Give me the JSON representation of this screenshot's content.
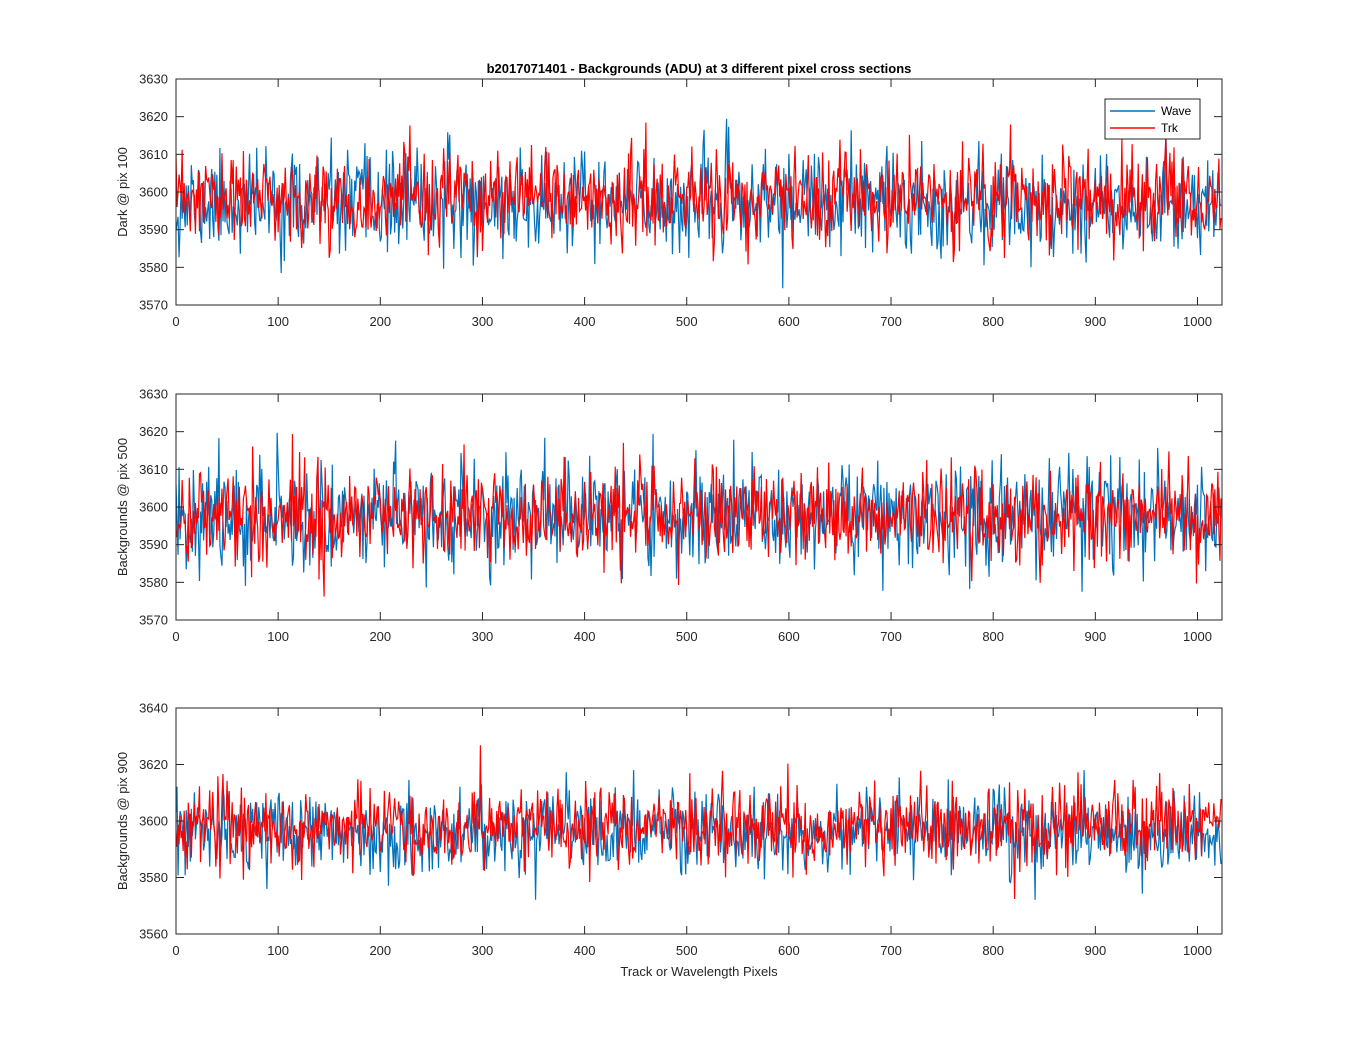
{
  "chart_data": [
    {
      "type": "line",
      "title": "b2017071401 - Backgrounds (ADU) at 3 different pixel cross sections",
      "xlabel": "",
      "ylabel": "Dark @ pix 100",
      "xlim": [
        0,
        1024
      ],
      "ylim": [
        3570,
        3630
      ],
      "x_ticks": [
        0,
        100,
        200,
        300,
        400,
        500,
        600,
        700,
        800,
        900,
        1000
      ],
      "y_ticks": [
        3570,
        3580,
        3590,
        3600,
        3610,
        3620,
        3630
      ],
      "grid": false,
      "legend": "top-right",
      "series": [
        {
          "name": "Wave",
          "color": "#0072bd",
          "n_points": 1024,
          "mean": 3597,
          "std": 6.5,
          "min": 3574,
          "max": 3621,
          "seed": 11
        },
        {
          "name": "Trk",
          "color": "#ff0000",
          "n_points": 1024,
          "mean": 3598,
          "std": 6.0,
          "min": 3574,
          "max": 3621,
          "seed": 23
        }
      ]
    },
    {
      "type": "line",
      "title": "",
      "xlabel": "",
      "ylabel": "Backgrounds @ pix 500",
      "xlim": [
        0,
        1024
      ],
      "ylim": [
        3570,
        3630
      ],
      "x_ticks": [
        0,
        100,
        200,
        300,
        400,
        500,
        600,
        700,
        800,
        900,
        1000
      ],
      "y_ticks": [
        3570,
        3580,
        3590,
        3600,
        3610,
        3620,
        3630
      ],
      "grid": false,
      "series": [
        {
          "name": "Wave",
          "color": "#0072bd",
          "n_points": 1024,
          "mean": 3598,
          "std": 7.0,
          "min": 3572,
          "max": 3620,
          "seed": 37
        },
        {
          "name": "Trk",
          "color": "#ff0000",
          "n_points": 1024,
          "mean": 3598,
          "std": 6.5,
          "min": 3572,
          "max": 3621,
          "seed": 41
        }
      ]
    },
    {
      "type": "line",
      "title": "",
      "xlabel": "Track or Wavelength Pixels",
      "ylabel": "Backgrounds @ pix 900",
      "xlim": [
        0,
        1024
      ],
      "ylim": [
        3560,
        3640
      ],
      "x_ticks": [
        0,
        100,
        200,
        300,
        400,
        500,
        600,
        700,
        800,
        900,
        1000
      ],
      "y_ticks": [
        3560,
        3580,
        3600,
        3620,
        3640
      ],
      "grid": false,
      "series": [
        {
          "name": "Wave",
          "color": "#0072bd",
          "n_points": 1024,
          "mean": 3596,
          "std": 7.0,
          "min": 3568,
          "max": 3618,
          "seed": 53
        },
        {
          "name": "Trk",
          "color": "#ff0000",
          "n_points": 1024,
          "mean": 3598,
          "std": 7.0,
          "min": 3570,
          "max": 3628,
          "seed": 67
        }
      ]
    }
  ]
}
